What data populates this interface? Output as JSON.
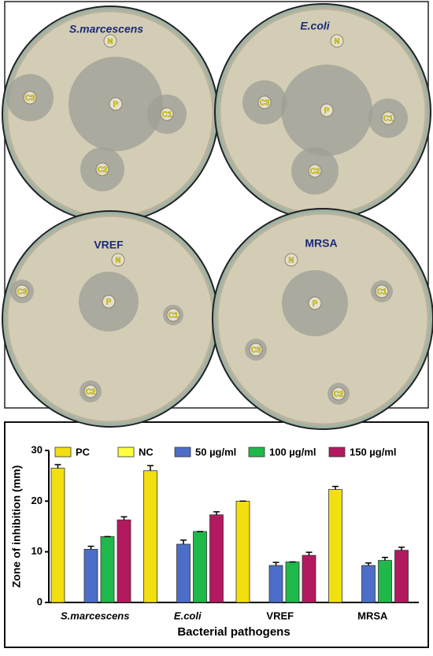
{
  "photo": {
    "plates": [
      {
        "title": "S.marcescens",
        "discs": [
          "N",
          "P",
          "C3",
          "C1",
          "C2"
        ]
      },
      {
        "title": "E.coli",
        "discs": [
          "N",
          "P",
          "C3",
          "C1",
          "C2"
        ]
      },
      {
        "title": "VREF",
        "discs": [
          "N",
          "P",
          "C3",
          "C1",
          "C2"
        ]
      },
      {
        "title": "MRSA",
        "discs": [
          "N",
          "P",
          "C1",
          "C3",
          "C2"
        ]
      }
    ]
  },
  "chart_data": {
    "type": "bar",
    "y_label": "Zone of inhibition (mm)",
    "x_label": "Bacterial pathogens",
    "categories": [
      "S.marcescens",
      "E.coli",
      "VREF",
      "MRSA"
    ],
    "series": [
      {
        "name": "PC",
        "color": "#f2df10",
        "values": [
          26.5,
          26,
          20,
          22.3
        ],
        "errors": [
          0.7,
          1,
          0,
          0.6
        ]
      },
      {
        "name": "NC",
        "color": "#ffff40",
        "values": [
          0,
          0,
          0,
          0
        ],
        "errors": [
          0,
          0,
          0,
          0
        ]
      },
      {
        "name": "50 µg/ml",
        "color": "#4c6ec8",
        "values": [
          10.5,
          11.5,
          7.3,
          7.3
        ],
        "errors": [
          0.6,
          0.8,
          0.6,
          0.5
        ]
      },
      {
        "name": "100 µg/ml",
        "color": "#1fb84a",
        "values": [
          13,
          14,
          8,
          8.3
        ],
        "errors": [
          0,
          0,
          0,
          0.6
        ]
      },
      {
        "name": "150 µg/ml",
        "color": "#b3195f",
        "values": [
          16.3,
          17.3,
          9.3,
          10.3
        ],
        "errors": [
          0.6,
          0.6,
          0.6,
          0.6
        ]
      }
    ],
    "ylim": [
      0,
      30
    ],
    "yticks": [
      0,
      10,
      20,
      30
    ],
    "grid": false
  }
}
